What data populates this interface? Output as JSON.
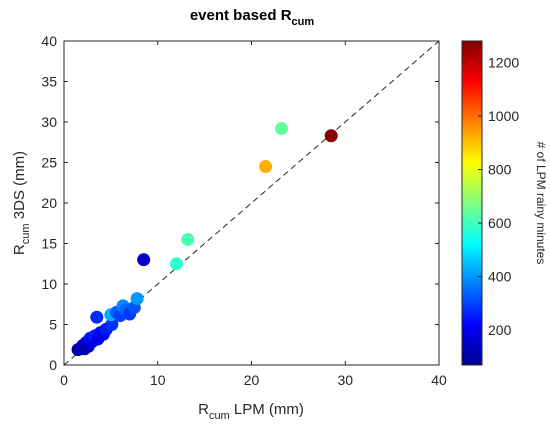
{
  "chart_data": {
    "type": "scatter",
    "title": "event based R",
    "title_sub": "cum",
    "xlabel_main": "R",
    "xlabel_sub": "cum",
    "xlabel_rest": " LPM (mm)",
    "ylabel_main": "R",
    "ylabel_sub": "cum",
    "ylabel_rest": " 3DS (mm)",
    "colorbar_label": "# of LPM rainy minutes",
    "xlim": [
      0,
      40
    ],
    "ylim": [
      0,
      40
    ],
    "xticks": [
      "0",
      "10",
      "20",
      "30",
      "40"
    ],
    "yticks": [
      "0",
      "5",
      "10",
      "15",
      "20",
      "25",
      "30",
      "35",
      "40"
    ],
    "colorbar_range": [
      70,
      1280
    ],
    "colorbar_ticks": [
      "200",
      "400",
      "600",
      "800",
      "1000",
      "1200"
    ],
    "colormap": "jet",
    "reference_line": "1:1 dashed",
    "grid": false,
    "points": [
      {
        "x": 1.5,
        "y": 1.9,
        "minutes": 110
      },
      {
        "x": 1.8,
        "y": 2.1,
        "minutes": 130
      },
      {
        "x": 2.0,
        "y": 2.4,
        "minutes": 150
      },
      {
        "x": 2.2,
        "y": 2.0,
        "minutes": 120
      },
      {
        "x": 2.4,
        "y": 2.8,
        "minutes": 170
      },
      {
        "x": 2.6,
        "y": 2.3,
        "minutes": 140
      },
      {
        "x": 2.8,
        "y": 3.3,
        "minutes": 240
      },
      {
        "x": 3.0,
        "y": 2.9,
        "minutes": 190
      },
      {
        "x": 3.3,
        "y": 3.6,
        "minutes": 260
      },
      {
        "x": 3.6,
        "y": 3.2,
        "minutes": 200
      },
      {
        "x": 3.9,
        "y": 4.0,
        "minutes": 230
      },
      {
        "x": 4.2,
        "y": 3.8,
        "minutes": 210
      },
      {
        "x": 4.5,
        "y": 4.4,
        "minutes": 250
      },
      {
        "x": 3.5,
        "y": 5.9,
        "minutes": 270
      },
      {
        "x": 5.1,
        "y": 5.0,
        "minutes": 280
      },
      {
        "x": 5.0,
        "y": 6.2,
        "minutes": 430
      },
      {
        "x": 5.6,
        "y": 6.5,
        "minutes": 330
      },
      {
        "x": 6.0,
        "y": 6.1,
        "minutes": 300
      },
      {
        "x": 6.3,
        "y": 7.3,
        "minutes": 380
      },
      {
        "x": 6.6,
        "y": 6.8,
        "minutes": 340
      },
      {
        "x": 7.0,
        "y": 6.3,
        "minutes": 290
      },
      {
        "x": 7.5,
        "y": 7.1,
        "minutes": 320
      },
      {
        "x": 7.8,
        "y": 8.2,
        "minutes": 400
      },
      {
        "x": 8.5,
        "y": 13.0,
        "minutes": 160
      },
      {
        "x": 12.0,
        "y": 12.5,
        "minutes": 580
      },
      {
        "x": 13.2,
        "y": 15.5,
        "minutes": 610
      },
      {
        "x": 21.5,
        "y": 24.5,
        "minutes": 920
      },
      {
        "x": 23.2,
        "y": 29.2,
        "minutes": 640
      },
      {
        "x": 28.5,
        "y": 28.3,
        "minutes": 1270
      }
    ]
  }
}
